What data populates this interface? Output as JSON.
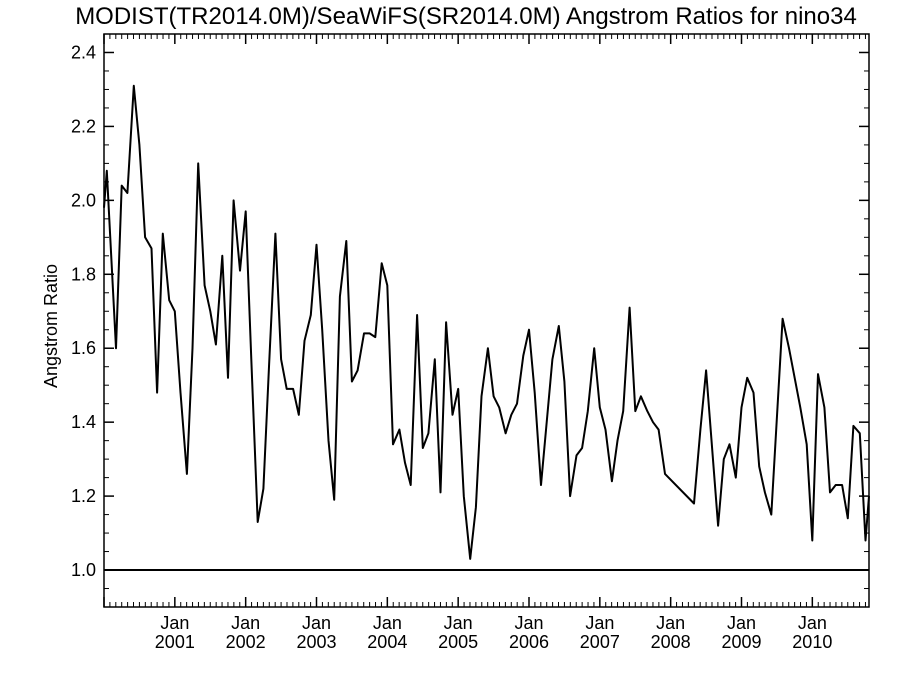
{
  "chart_data": {
    "type": "line",
    "title": "MODIST(TR2014.0M)/SeaWiFS(SR2014.0M)  Angstrom Ratios for nino34",
    "xlabel": "",
    "ylabel": "Angstrom Ratio",
    "xlim": [
      2000.0,
      2010.8
    ],
    "ylim": [
      0.9,
      2.45
    ],
    "yticks": [
      1.0,
      1.2,
      1.4,
      1.6,
      1.8,
      2.0,
      2.2,
      2.4
    ],
    "ytick_labels": [
      "1.0",
      "1.2",
      "1.4",
      "1.6",
      "1.8",
      "2.0",
      "2.2",
      "2.4"
    ],
    "xticks": [
      2001,
      2002,
      2003,
      2004,
      2005,
      2006,
      2007,
      2008,
      2009,
      2010
    ],
    "xtick_month": [
      "Jan",
      "Jan",
      "Jan",
      "Jan",
      "Jan",
      "Jan",
      "Jan",
      "Jan",
      "Jan",
      "Jan"
    ],
    "xtick_year": [
      "2001",
      "2002",
      "2003",
      "2004",
      "2005",
      "2006",
      "2007",
      "2008",
      "2009",
      "2010"
    ],
    "reference_line": 1.0,
    "grid": false,
    "series": [
      {
        "x": [
          2000.0,
          2000.04,
          2000.17,
          2000.25,
          2000.33,
          2000.42,
          2000.5,
          2000.58,
          2000.67,
          2000.75,
          2000.83,
          2000.92,
          2001.0,
          2001.08,
          2001.17,
          2001.25,
          2001.33,
          2001.42,
          2001.5,
          2001.58,
          2001.67,
          2001.75,
          2001.83,
          2001.92,
          2002.0,
          2002.08,
          2002.17,
          2002.25,
          2002.33,
          2002.42,
          2002.5,
          2002.58,
          2002.67,
          2002.75,
          2002.83,
          2002.92,
          2003.0,
          2003.08,
          2003.17,
          2003.25,
          2003.33,
          2003.42,
          2003.5,
          2003.58,
          2003.67,
          2003.75,
          2003.83,
          2003.92,
          2004.0,
          2004.08,
          2004.17,
          2004.25,
          2004.33,
          2004.42,
          2004.5,
          2004.58,
          2004.67,
          2004.75,
          2004.83,
          2004.92,
          2005.0,
          2005.08,
          2005.17,
          2005.25,
          2005.33,
          2005.42,
          2005.5,
          2005.58,
          2005.67,
          2005.75,
          2005.83,
          2005.92,
          2006.0,
          2006.08,
          2006.17,
          2006.25,
          2006.33,
          2006.42,
          2006.5,
          2006.58,
          2006.67,
          2006.75,
          2006.83,
          2006.92,
          2007.0,
          2007.08,
          2007.17,
          2007.25,
          2007.33,
          2007.42,
          2007.5,
          2007.58,
          2007.67,
          2007.75,
          2007.83,
          2007.92,
          2008.33,
          2008.42,
          2008.5,
          2008.67,
          2008.75,
          2008.83,
          2008.92,
          2009.0,
          2009.08,
          2009.17,
          2009.25,
          2009.33,
          2009.42,
          2009.58,
          2009.67,
          2009.83,
          2009.92,
          2010.0,
          2010.08,
          2010.17,
          2010.25,
          2010.33,
          2010.42,
          2010.5,
          2010.58,
          2010.67,
          2010.75,
          2010.8
        ],
        "values": [
          1.98,
          2.08,
          1.6,
          2.04,
          2.02,
          2.31,
          2.15,
          1.9,
          1.87,
          1.48,
          1.91,
          1.73,
          1.7,
          1.48,
          1.26,
          1.6,
          2.1,
          1.77,
          1.7,
          1.61,
          1.85,
          1.52,
          2.0,
          1.81,
          1.97,
          1.57,
          1.13,
          1.22,
          1.55,
          1.91,
          1.57,
          1.49,
          1.49,
          1.42,
          1.62,
          1.69,
          1.88,
          1.65,
          1.35,
          1.19,
          1.74,
          1.89,
          1.51,
          1.54,
          1.64,
          1.64,
          1.63,
          1.83,
          1.77,
          1.34,
          1.38,
          1.29,
          1.23,
          1.69,
          1.33,
          1.37,
          1.57,
          1.21,
          1.67,
          1.42,
          1.49,
          1.2,
          1.03,
          1.17,
          1.47,
          1.6,
          1.47,
          1.44,
          1.37,
          1.42,
          1.45,
          1.58,
          1.65,
          1.48,
          1.23,
          1.4,
          1.57,
          1.66,
          1.51,
          1.2,
          1.31,
          1.33,
          1.43,
          1.6,
          1.44,
          1.38,
          1.24,
          1.35,
          1.43,
          1.71,
          1.43,
          1.47,
          1.43,
          1.4,
          1.38,
          1.26,
          1.18,
          1.38,
          1.54,
          1.12,
          1.3,
          1.34,
          1.25,
          1.44,
          1.52,
          1.48,
          1.28,
          1.21,
          1.15,
          1.68,
          1.6,
          1.44,
          1.34,
          1.08,
          1.53,
          1.44,
          1.21,
          1.23,
          1.23,
          1.14,
          1.39,
          1.37,
          1.08,
          1.2
        ]
      }
    ]
  }
}
